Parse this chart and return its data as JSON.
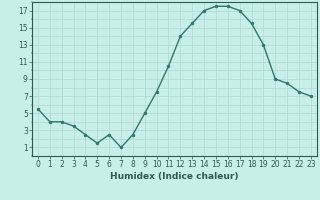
{
  "x": [
    0,
    1,
    2,
    3,
    4,
    5,
    6,
    7,
    8,
    9,
    10,
    11,
    12,
    13,
    14,
    15,
    16,
    17,
    18,
    19,
    20,
    21,
    22,
    23
  ],
  "y": [
    5.5,
    4.0,
    4.0,
    3.5,
    2.5,
    1.5,
    2.5,
    1.0,
    2.5,
    5.0,
    7.5,
    10.5,
    14.0,
    15.5,
    17.0,
    17.5,
    17.5,
    17.0,
    15.5,
    13.0,
    9.0,
    8.5,
    7.5,
    7.0
  ],
  "xlabel": "Humidex (Indice chaleur)",
  "line_color": "#2d7a6b",
  "marker_color": "#2d7a6b",
  "bg_color": "#c8eee8",
  "grid_color": "#b0d8d2",
  "xlim": [
    -0.5,
    23.5
  ],
  "ylim": [
    0,
    18
  ],
  "yticks": [
    1,
    3,
    5,
    7,
    9,
    11,
    13,
    15,
    17
  ],
  "xticks": [
    0,
    1,
    2,
    3,
    4,
    5,
    6,
    7,
    8,
    9,
    10,
    11,
    12,
    13,
    14,
    15,
    16,
    17,
    18,
    19,
    20,
    21,
    22,
    23
  ],
  "tick_color": "#2d5a52",
  "label_fontsize": 5.5,
  "xlabel_fontsize": 6.5,
  "linewidth": 1.0,
  "markersize": 2.0
}
